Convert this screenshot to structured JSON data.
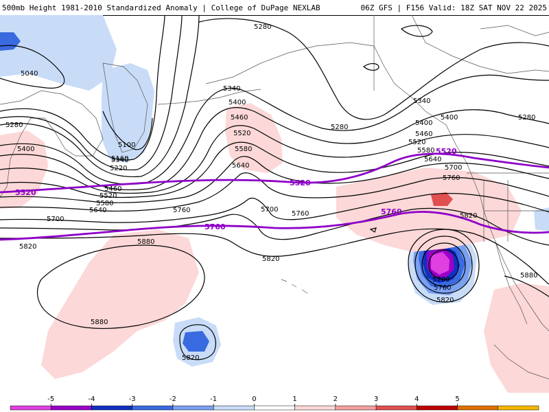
{
  "header": {
    "title_left": "500mb Height 1981-2010 Standardized Anomaly | College of DuPage NEXLAB",
    "title_right": "06Z GFS | F156 Valid: 18Z SAT NOV 22 2025"
  },
  "contour_labels": [
    "5040",
    "5280",
    "5100",
    "5160",
    "5220",
    "5340",
    "5400",
    "5460",
    "5520",
    "5580",
    "5640",
    "5700",
    "5760",
    "5820",
    "5880",
    "5280",
    "5340",
    "5400",
    "5460",
    "5520",
    "5580",
    "5640",
    "5700",
    "5760",
    "5820",
    "5280",
    "5340",
    "5400",
    "5460",
    "5520",
    "5580",
    "5640",
    "5700",
    "5760",
    "5820",
    "5880",
    "5280",
    "5400",
    "5880",
    "5820",
    "5700",
    "5760",
    "5820"
  ],
  "reference_labels": [
    "5520",
    "5520",
    "5520",
    "5760",
    "5760"
  ],
  "legend": {
    "ticks": [
      "-5",
      "-4",
      "-3",
      "-2",
      "-1",
      "0",
      "1",
      "2",
      "3",
      "4",
      "5"
    ],
    "colors": [
      "#e040e0",
      "#9a00c8",
      "#1030c0",
      "#3a6ae0",
      "#7aa0f0",
      "#c8dcf8",
      "#ffffff",
      "#fcd8d8",
      "#f4a0a0",
      "#e05050",
      "#c00000",
      "#e07000",
      "#f4b800"
    ]
  }
}
